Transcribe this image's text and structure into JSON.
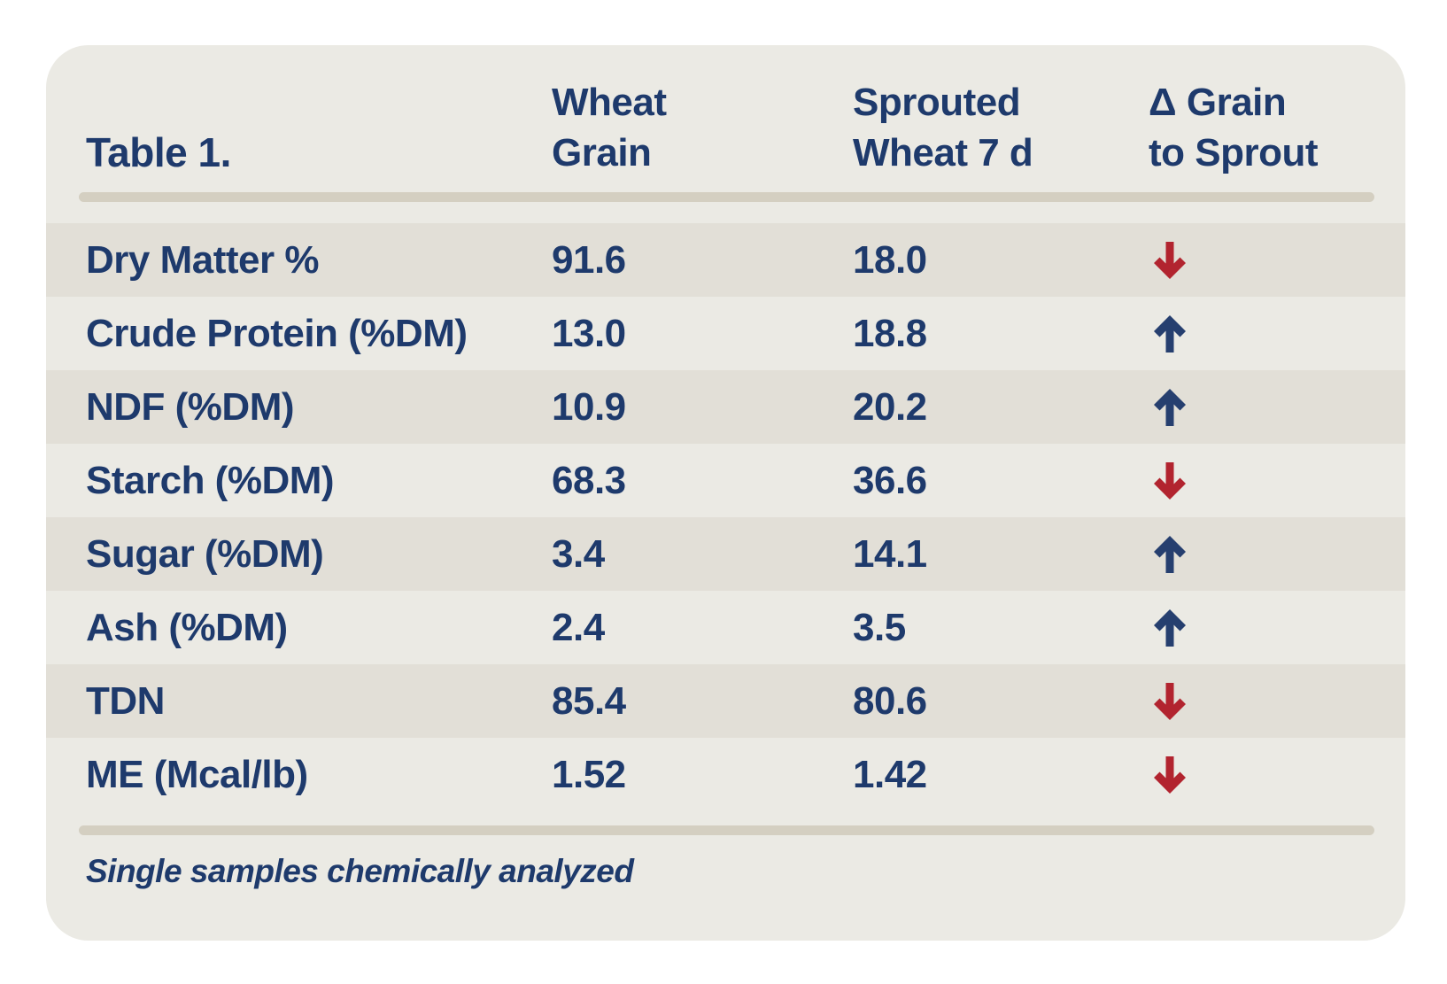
{
  "table": {
    "title": "Table 1.",
    "headers": [
      {
        "line1": "Wheat",
        "line2": "Grain"
      },
      {
        "line1": "Sprouted",
        "line2": "Wheat 7 d"
      },
      {
        "line1": "Δ Grain",
        "line2": "to Sprout"
      }
    ],
    "rows": [
      {
        "label": "Dry Matter %",
        "wheat_grain": "91.6",
        "sprouted_wheat_7d": "18.0",
        "delta": "decrease"
      },
      {
        "label": "Crude Protein (%DM)",
        "wheat_grain": "13.0",
        "sprouted_wheat_7d": "18.8",
        "delta": "increase"
      },
      {
        "label": "NDF (%DM)",
        "wheat_grain": "10.9",
        "sprouted_wheat_7d": "20.2",
        "delta": "increase"
      },
      {
        "label": "Starch (%DM)",
        "wheat_grain": "68.3",
        "sprouted_wheat_7d": "36.6",
        "delta": "decrease"
      },
      {
        "label": "Sugar (%DM)",
        "wheat_grain": "3.4",
        "sprouted_wheat_7d": "14.1",
        "delta": "increase"
      },
      {
        "label": "Ash (%DM)",
        "wheat_grain": "2.4",
        "sprouted_wheat_7d": "3.5",
        "delta": "increase"
      },
      {
        "label": "TDN",
        "wheat_grain": "85.4",
        "sprouted_wheat_7d": "80.6",
        "delta": "decrease"
      },
      {
        "label": "ME (Mcal/lb)",
        "wheat_grain": "1.52",
        "sprouted_wheat_7d": "1.42",
        "delta": "decrease"
      }
    ],
    "footnote": "Single samples chemically analyzed"
  },
  "colors": {
    "navy": "#1e3a6c",
    "arrow_navy": "#263f6f",
    "arrow_red": "#b2242f",
    "card_bg": "#ebeae4",
    "stripe": "#e2dfd7",
    "divider": "#d4cfc1",
    "page_bg": "#ffffff"
  },
  "chart_data": {
    "type": "table",
    "title": "Table 1.",
    "columns": [
      "",
      "Wheat Grain",
      "Sprouted Wheat 7 d",
      "Δ Grain to Sprout"
    ],
    "rows": [
      [
        "Dry Matter %",
        91.6,
        18.0,
        "decrease"
      ],
      [
        "Crude Protein (%DM)",
        13.0,
        18.8,
        "increase"
      ],
      [
        "NDF (%DM)",
        10.9,
        20.2,
        "increase"
      ],
      [
        "Starch (%DM)",
        68.3,
        36.6,
        "decrease"
      ],
      [
        "Sugar (%DM)",
        3.4,
        14.1,
        "increase"
      ],
      [
        "Ash (%DM)",
        2.4,
        3.5,
        "increase"
      ],
      [
        "TDN",
        85.4,
        80.6,
        "decrease"
      ],
      [
        "ME (Mcal/lb)",
        1.52,
        1.42,
        "decrease"
      ]
    ],
    "footnote": "Single samples chemically analyzed",
    "layout_hints": {
      "striped_rows": true,
      "arrow_up_color": "#263f6f",
      "arrow_down_color": "#b2242f"
    }
  }
}
